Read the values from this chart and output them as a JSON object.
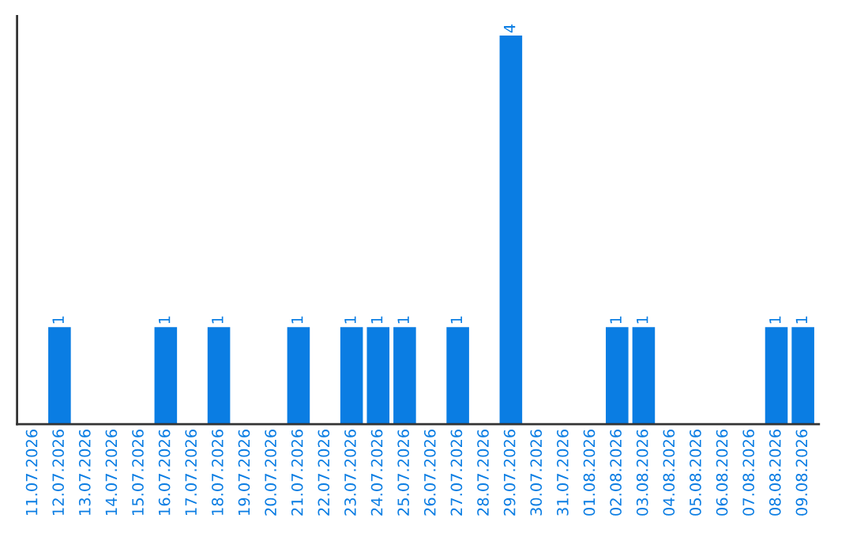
{
  "chart_data": {
    "type": "bar",
    "categories": [
      "11.07.2026",
      "12.07.2026",
      "13.07.2026",
      "14.07.2026",
      "15.07.2026",
      "16.07.2026",
      "17.07.2026",
      "18.07.2026",
      "19.07.2026",
      "20.07.2026",
      "21.07.2026",
      "22.07.2026",
      "23.07.2026",
      "24.07.2026",
      "25.07.2026",
      "26.07.2026",
      "27.07.2026",
      "28.07.2026",
      "29.07.2026",
      "30.07.2026",
      "31.07.2026",
      "01.08.2026",
      "02.08.2026",
      "03.08.2026",
      "04.08.2026",
      "05.08.2026",
      "06.08.2026",
      "07.08.2026",
      "08.08.2026",
      "09.08.2026"
    ],
    "values": [
      0,
      1,
      0,
      0,
      0,
      1,
      0,
      1,
      0,
      0,
      1,
      0,
      1,
      1,
      1,
      0,
      1,
      0,
      4,
      0,
      0,
      0,
      1,
      1,
      0,
      0,
      0,
      0,
      1,
      1
    ],
    "value_labels": [
      null,
      "1",
      null,
      null,
      null,
      "1",
      null,
      "1",
      null,
      null,
      "1",
      null,
      "1",
      "1",
      "1",
      null,
      "1",
      null,
      "4",
      null,
      null,
      null,
      "1",
      "1",
      null,
      null,
      null,
      null,
      "1",
      "1"
    ],
    "color": "#0a7de3",
    "grid": false,
    "legend": false,
    "tick_labels": "x"
  }
}
